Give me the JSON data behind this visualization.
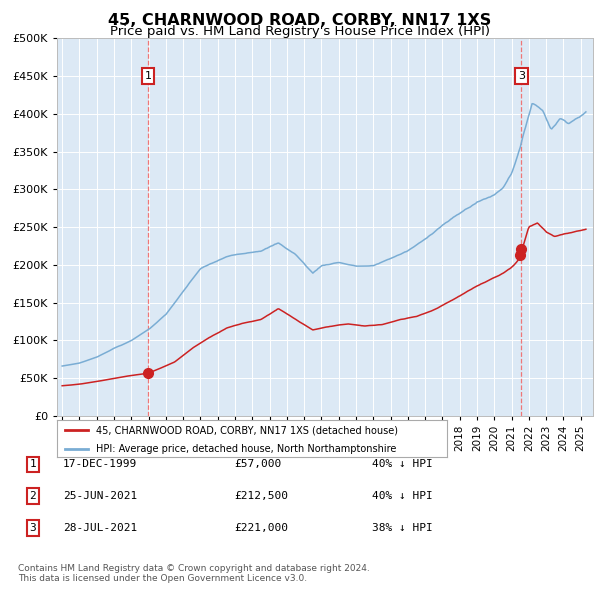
{
  "title": "45, CHARNWOOD ROAD, CORBY, NN17 1XS",
  "subtitle": "Price paid vs. HM Land Registry's House Price Index (HPI)",
  "title_fontsize": 11.5,
  "subtitle_fontsize": 9.5,
  "background_color": "#dce9f5",
  "plot_bg_color": "#dce9f5",
  "ylim": [
    0,
    500000
  ],
  "yticks": [
    0,
    50000,
    100000,
    150000,
    200000,
    250000,
    300000,
    350000,
    400000,
    450000,
    500000
  ],
  "xlim_start": 1994.7,
  "xlim_end": 2025.7,
  "hpi_color": "#7aadd4",
  "price_color": "#cc2222",
  "vline_color": "#ee7777",
  "sale1_x": 1999.96,
  "sale1_y": 57000,
  "sale2_x": 2021.48,
  "sale2_y": 212500,
  "sale3_x": 2021.57,
  "sale3_y": 221000,
  "legend_label_red": "45, CHARNWOOD ROAD, CORBY, NN17 1XS (detached house)",
  "legend_label_blue": "HPI: Average price, detached house, North Northamptonshire",
  "table_rows": [
    {
      "num": "1",
      "date": "17-DEC-1999",
      "price": "£57,000",
      "note": "40% ↓ HPI"
    },
    {
      "num": "2",
      "date": "25-JUN-2021",
      "price": "£212,500",
      "note": "40% ↓ HPI"
    },
    {
      "num": "3",
      "date": "28-JUL-2021",
      "price": "£221,000",
      "note": "38% ↓ HPI"
    }
  ],
  "footnote": "Contains HM Land Registry data © Crown copyright and database right 2024.\nThis data is licensed under the Open Government Licence v3.0."
}
